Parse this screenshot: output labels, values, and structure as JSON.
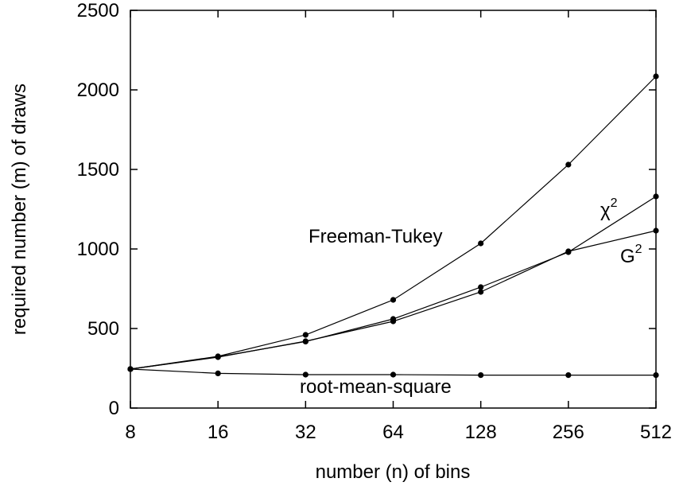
{
  "chart_data": {
    "type": "line",
    "xlabel": "number (n) of bins",
    "ylabel": "required number (m) of draws",
    "x_scale": "log2",
    "x": [
      8,
      16,
      32,
      64,
      128,
      256,
      512
    ],
    "x_tick_labels": [
      "8",
      "16",
      "32",
      "64",
      "128",
      "256",
      "512"
    ],
    "ylim": [
      0,
      2500
    ],
    "y_ticks": [
      0,
      500,
      1000,
      1500,
      2000,
      2500
    ],
    "y_tick_labels": [
      "0",
      "500",
      "1000",
      "1500",
      "2000",
      "2500"
    ],
    "grid": false,
    "legend": "none",
    "series": [
      {
        "name": "Freeman-Tukey",
        "values": [
          245,
          325,
          460,
          680,
          1035,
          1530,
          2085
        ]
      },
      {
        "name": "χ2",
        "values": [
          245,
          322,
          418,
          560,
          760,
          980,
          1330
        ]
      },
      {
        "name": "G2",
        "values": [
          245,
          320,
          420,
          545,
          730,
          985,
          1115
        ]
      },
      {
        "name": "root-mean-square",
        "values": [
          245,
          218,
          210,
          210,
          207,
          207,
          207
        ]
      }
    ],
    "annotations": {
      "freeman_tukey": "Freeman-Tukey",
      "chi_base": "χ",
      "chi_sup": "2",
      "g_base": "G",
      "g_sup": "2",
      "rms": "root-mean-square"
    }
  }
}
